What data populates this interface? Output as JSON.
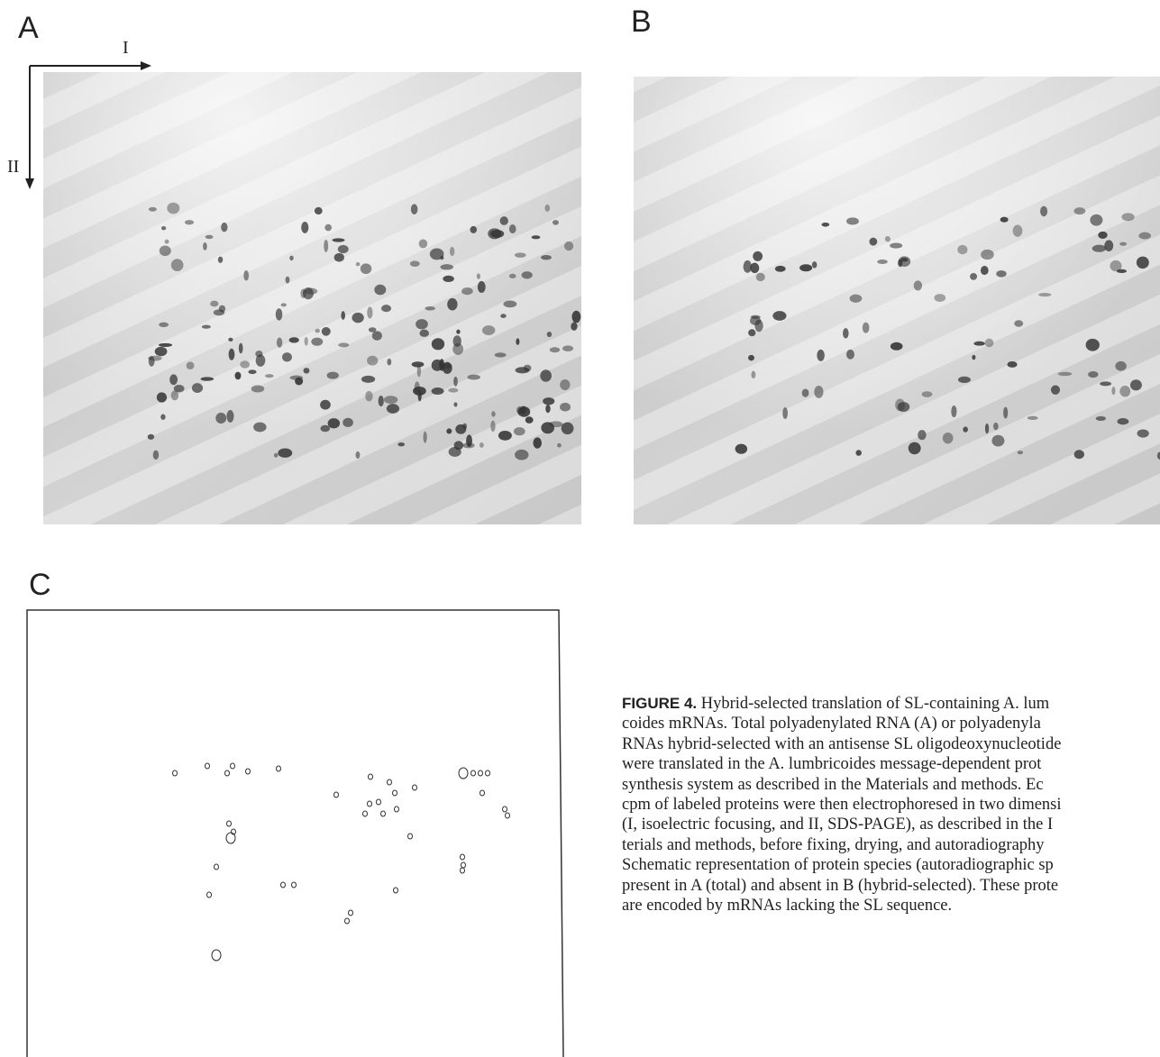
{
  "panels": {
    "a": {
      "label": "A",
      "axis_horizontal": "I",
      "axis_vertical": "II"
    },
    "b": {
      "label": "B"
    },
    "c": {
      "label": "C"
    }
  },
  "caption": {
    "label": "FIGURE 4.",
    "lines": [
      " Hybrid-selected translation of SL-containing A. lum",
      "coides mRNAs. Total polyadenylated RNA (A) or polyadenyla",
      "RNAs hybrid-selected with an antisense SL oligodeoxynucleotide",
      "were translated in the A. lumbricoides message-dependent prot",
      "synthesis system as described in the Materials and methods. Ec",
      "cpm of labeled proteins were then electrophoresed in two dimensi",
      "(I, isoelectric focusing, and II, SDS-PAGE), as described in the I",
      "terials and methods, before fixing, drying, and autoradiography",
      "Schematic representation of protein species (autoradiographic sp",
      "present in A (total) and absent in B (hybrid-selected). These prote",
      "are encoded by mRNAs lacking the SL sequence."
    ]
  }
}
